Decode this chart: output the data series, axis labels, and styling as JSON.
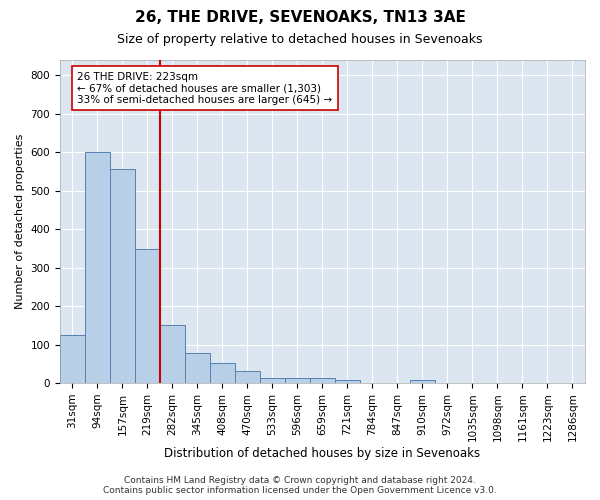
{
  "title": "26, THE DRIVE, SEVENOAKS, TN13 3AE",
  "subtitle": "Size of property relative to detached houses in Sevenoaks",
  "xlabel": "Distribution of detached houses by size in Sevenoaks",
  "ylabel": "Number of detached properties",
  "bar_labels": [
    "31sqm",
    "94sqm",
    "157sqm",
    "219sqm",
    "282sqm",
    "345sqm",
    "408sqm",
    "470sqm",
    "533sqm",
    "596sqm",
    "659sqm",
    "721sqm",
    "784sqm",
    "847sqm",
    "910sqm",
    "972sqm",
    "1035sqm",
    "1098sqm",
    "1161sqm",
    "1223sqm",
    "1286sqm"
  ],
  "bar_values": [
    125,
    601,
    557,
    348,
    150,
    77,
    52,
    30,
    14,
    13,
    13,
    7,
    0,
    0,
    8,
    0,
    0,
    0,
    0,
    0,
    0
  ],
  "bar_color": "#b8cfe8",
  "bar_edge_color": "#5580b0",
  "vline_color": "#cc0000",
  "vline_x": 3.5,
  "annotation_text": "26 THE DRIVE: 223sqm\n← 67% of detached houses are smaller (1,303)\n33% of semi-detached houses are larger (645) →",
  "annotation_box_facecolor": "#ffffff",
  "annotation_box_edgecolor": "#cc0000",
  "ylim": [
    0,
    840
  ],
  "yticks": [
    0,
    100,
    200,
    300,
    400,
    500,
    600,
    700,
    800
  ],
  "background_color": "#dce6f0",
  "grid_color": "#ffffff",
  "fig_facecolor": "#ffffff",
  "footer": "Contains HM Land Registry data © Crown copyright and database right 2024.\nContains public sector information licensed under the Open Government Licence v3.0.",
  "title_fontsize": 11,
  "subtitle_fontsize": 9,
  "ylabel_fontsize": 8,
  "xlabel_fontsize": 8.5,
  "tick_fontsize": 7.5,
  "annotation_fontsize": 7.5,
  "footer_fontsize": 6.5
}
